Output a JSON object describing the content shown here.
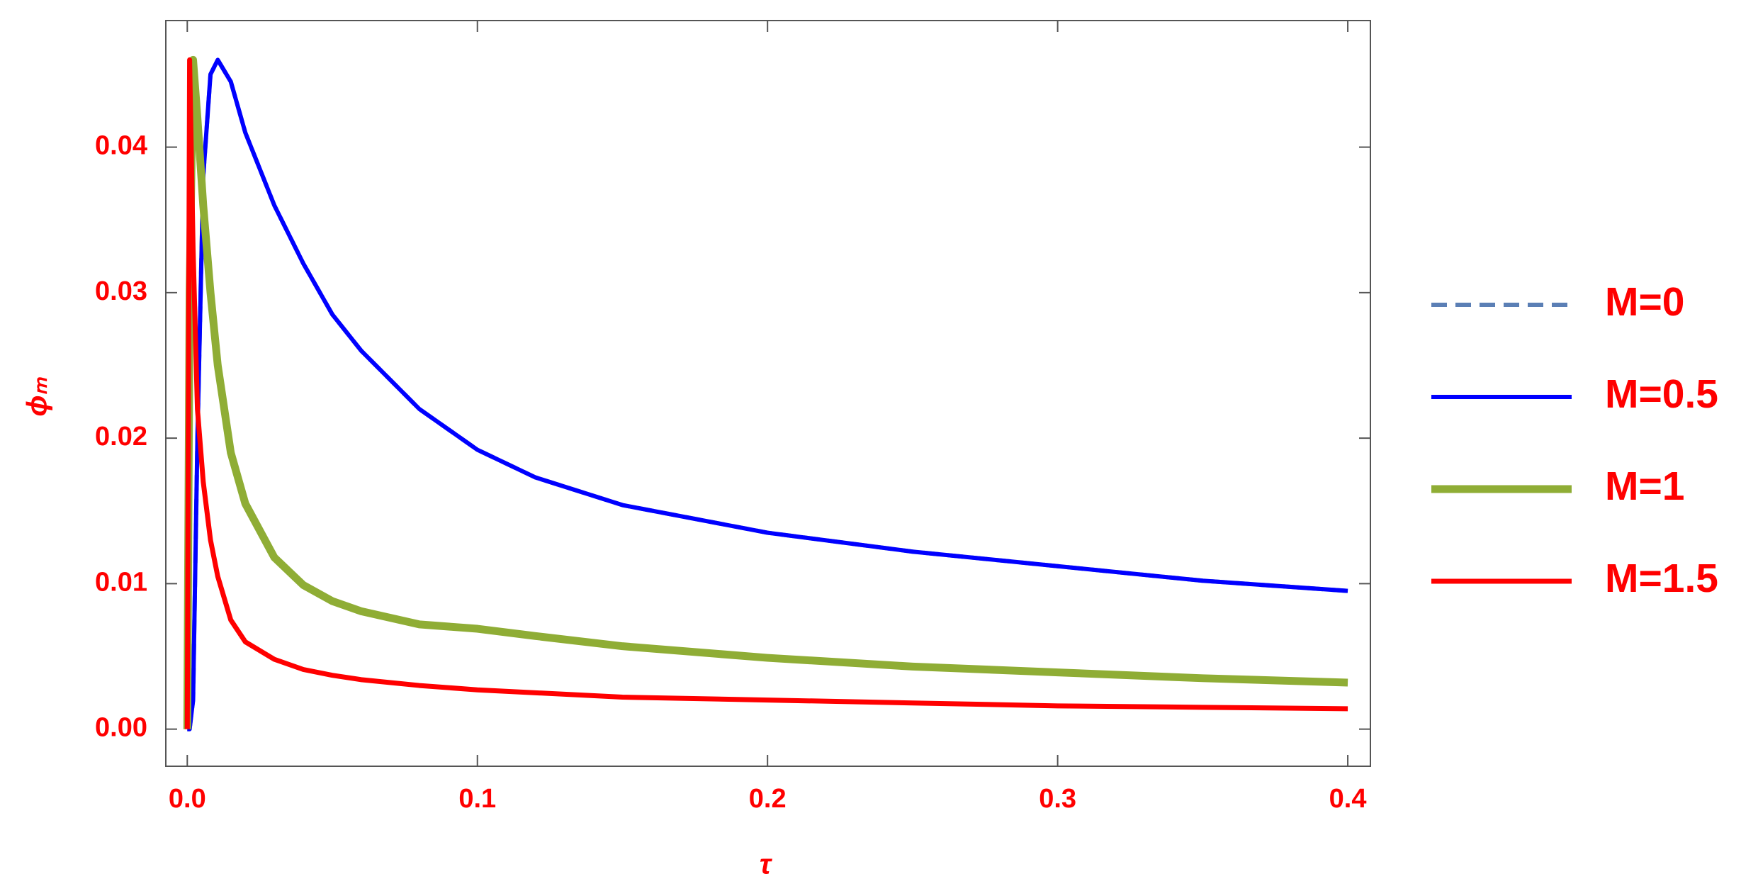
{
  "chart_data": {
    "type": "line",
    "xlabel": "τ",
    "ylabel": "ϕₘ",
    "x": [
      0,
      0.0008,
      0.002,
      0.0035,
      0.0055,
      0.008,
      0.0105,
      0.015,
      0.02,
      0.03,
      0.04,
      0.05,
      0.06,
      0.08,
      0.1,
      0.12,
      0.15,
      0.2,
      0.25,
      0.3,
      0.35,
      0.4
    ],
    "series": [
      {
        "name": "M=0",
        "color": "#5b7fb5",
        "dash": true,
        "width": 6,
        "values": [
          0,
          0,
          0.002,
          0.02,
          0.038,
          0.045,
          0.046,
          0.0445,
          0.041,
          0.036,
          0.032,
          0.0285,
          0.026,
          0.022,
          0.0192,
          0.0173,
          0.0154,
          0.0135,
          0.0122,
          0.0112,
          0.0102,
          0.0095
        ]
      },
      {
        "name": "M=0.5",
        "color": "#0000ff",
        "dash": false,
        "width": 6,
        "values": [
          0,
          0,
          0.002,
          0.02,
          0.038,
          0.045,
          0.046,
          0.0445,
          0.041,
          0.036,
          0.032,
          0.0285,
          0.026,
          0.022,
          0.0192,
          0.0173,
          0.0154,
          0.0135,
          0.0122,
          0.0112,
          0.0102,
          0.0095
        ]
      },
      {
        "name": "M=1",
        "color": "#8fad35",
        "dash": false,
        "width": 11,
        "values": [
          0,
          0.03,
          0.046,
          0.042,
          0.036,
          0.03,
          0.025,
          0.019,
          0.0155,
          0.0118,
          0.0099,
          0.0088,
          0.0081,
          0.0072,
          0.0069,
          0.0064,
          0.0057,
          0.0049,
          0.0043,
          0.0039,
          0.0035,
          0.0032
        ]
      },
      {
        "name": "M=1.5",
        "color": "#ff0000",
        "dash": false,
        "width": 7,
        "values": [
          0,
          0.046,
          0.033,
          0.022,
          0.017,
          0.013,
          0.0105,
          0.0075,
          0.006,
          0.0048,
          0.0041,
          0.0037,
          0.0034,
          0.003,
          0.0027,
          0.0025,
          0.0022,
          0.002,
          0.0018,
          0.0016,
          0.0015,
          0.0014
        ]
      }
    ],
    "xlim": [
      -0.0074,
      0.4078
    ],
    "ylim": [
      -0.00255,
      0.0487
    ],
    "xticks": [
      {
        "value": 0,
        "label": "0.0"
      },
      0.1,
      0.2,
      0.3,
      0.4
    ],
    "yticks": [
      {
        "value": 0,
        "label": "0.00"
      },
      0.01,
      0.02,
      0.03,
      0.04
    ],
    "legend": "right",
    "label_color": "#ff0000"
  }
}
